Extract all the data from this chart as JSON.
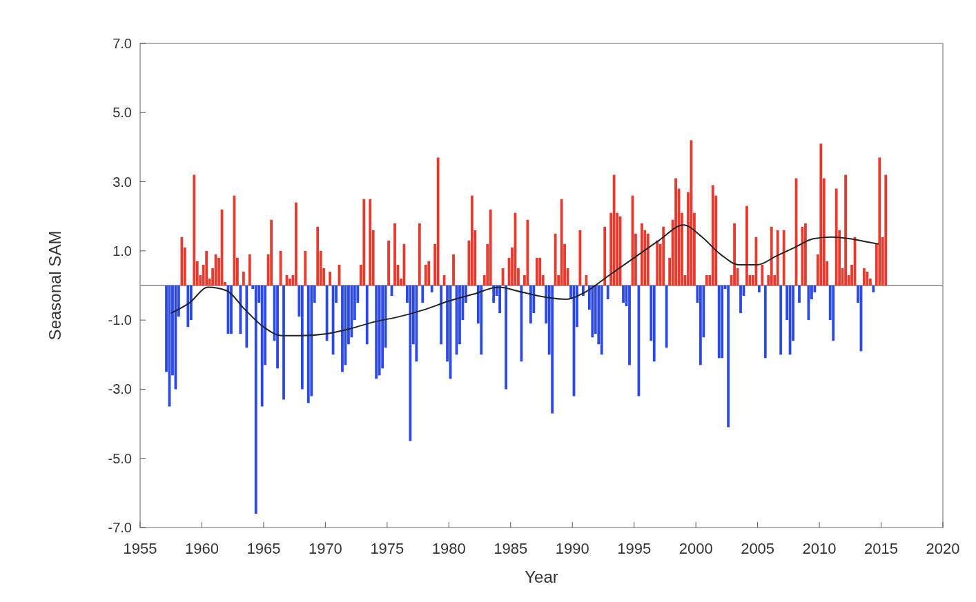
{
  "chart_data": {
    "type": "bar",
    "xlabel": "Year",
    "ylabel": "Seasonal SAM",
    "xlim": [
      1955,
      2020
    ],
    "xticks": [
      1955,
      1960,
      1965,
      1970,
      1975,
      1980,
      1985,
      1990,
      1995,
      2000,
      2005,
      2010,
      2015,
      2020
    ],
    "ylim": [
      -7,
      7
    ],
    "yticks": [
      {
        "value": -7,
        "label": "-7.0"
      },
      {
        "value": -5,
        "label": "-5.0"
      },
      {
        "value": -3,
        "label": "-3.0"
      },
      {
        "value": -1,
        "label": "-1.0"
      },
      {
        "value": 1,
        "label": "1.0"
      },
      {
        "value": 3,
        "label": "3.0"
      },
      {
        "value": 5,
        "label": "5.0"
      },
      {
        "value": 7,
        "label": "7.0"
      }
    ],
    "grid": false,
    "ref_lines": [
      {
        "axis": "y",
        "value": 0,
        "color": "#808080"
      }
    ],
    "series": [
      {
        "color": "#e8392c",
        "x": [
          1958.375,
          1958.625,
          1959.375,
          1959.625,
          1959.875,
          1960.125,
          1960.375,
          1960.625,
          1960.875,
          1961.125,
          1961.375,
          1961.625,
          1961.875,
          1962.625,
          1962.875,
          1963.375,
          1963.875,
          1965.375,
          1965.625,
          1966.375,
          1966.875,
          1967.125,
          1967.375,
          1967.625,
          1968.375,
          1969.375,
          1969.625,
          1969.875,
          1970.375,
          1971.125,
          1972.875,
          1973.125,
          1973.625,
          1973.875,
          1975.125,
          1975.625,
          1975.875,
          1976.125,
          1976.375,
          1977.625,
          1978.125,
          1978.375,
          1978.875,
          1979.125,
          1979.625,
          1980.375,
          1981.625,
          1981.875,
          1982.125,
          1982.875,
          1983.125,
          1983.375,
          1984.375,
          1984.875,
          1985.125,
          1985.375,
          1985.625,
          1986.125,
          1986.375,
          1987.125,
          1987.375,
          1987.625,
          1988.625,
          1988.875,
          1989.125,
          1989.375,
          1989.625,
          1990.625,
          1991.125,
          1992.625,
          1993.125,
          1993.375,
          1993.625,
          1993.875,
          1994.875,
          1995.125,
          1995.625,
          1995.875,
          1996.125,
          1996.875,
          1997.125,
          1997.375,
          1997.875,
          1998.125,
          1998.375,
          1998.625,
          1998.875,
          1999.125,
          1999.375,
          1999.625,
          1999.875,
          2000.875,
          2001.125,
          2001.375,
          2001.625,
          2002.875,
          2003.125,
          2003.375,
          2004.125,
          2004.375,
          2004.625,
          2004.875,
          2005.375,
          2005.875,
          2006.125,
          2006.375,
          2006.625,
          2007.125,
          2008.125,
          2008.625,
          2008.875,
          2009.875,
          2010.125,
          2010.375,
          2010.625,
          2011.375,
          2011.625,
          2011.875,
          2012.125,
          2012.375,
          2012.625,
          2012.875,
          2013.625,
          2013.875,
          2014.125,
          2014.625,
          2014.875,
          2015.125,
          2015.375
        ],
        "values": [
          1.4,
          1.1,
          3.2,
          0.7,
          0.3,
          0.6,
          1.0,
          0.2,
          0.5,
          0.9,
          0.8,
          2.2,
          0.1,
          2.6,
          0.8,
          0.4,
          0.9,
          0.9,
          1.9,
          1.0,
          0.3,
          0.2,
          0.3,
          2.4,
          1.0,
          1.7,
          1.0,
          0.5,
          0.4,
          0.6,
          0.6,
          2.5,
          2.5,
          1.6,
          1.3,
          1.8,
          0.6,
          0.2,
          1.2,
          1.8,
          0.6,
          0.7,
          1.2,
          3.7,
          0.3,
          0.9,
          1.3,
          2.6,
          1.6,
          0.3,
          1.2,
          2.2,
          0.5,
          0.8,
          1.1,
          2.1,
          0.5,
          0.3,
          1.9,
          0.8,
          0.8,
          0.3,
          1.5,
          0.3,
          2.5,
          1.2,
          0.5,
          1.6,
          0.3,
          1.7,
          2.1,
          3.2,
          2.1,
          2.0,
          2.6,
          1.5,
          1.8,
          1.6,
          1.5,
          1.3,
          1.2,
          1.7,
          0.8,
          1.9,
          3.1,
          2.8,
          2.1,
          0.3,
          2.7,
          4.2,
          2.1,
          0.3,
          0.3,
          2.9,
          2.6,
          0.3,
          1.8,
          0.5,
          2.3,
          0.3,
          0.3,
          1.4,
          0.6,
          0.3,
          1.7,
          0.3,
          1.6,
          1.6,
          3.1,
          1.7,
          1.8,
          0.9,
          4.1,
          3.1,
          0.7,
          2.8,
          1.6,
          0.5,
          3.2,
          0.3,
          0.6,
          1.4,
          0.5,
          0.4,
          0.2,
          1.2,
          3.7,
          1.4,
          3.2
        ]
      },
      {
        "color": "#2b48e8",
        "x": [
          1957.125,
          1957.375,
          1957.625,
          1957.875,
          1958.125,
          1958.875,
          1959.125,
          1962.125,
          1962.375,
          1963.125,
          1963.625,
          1964.125,
          1964.375,
          1964.625,
          1964.875,
          1965.125,
          1965.875,
          1966.125,
          1966.625,
          1967.875,
          1968.125,
          1968.625,
          1968.875,
          1969.125,
          1970.125,
          1970.625,
          1970.875,
          1971.375,
          1971.625,
          1971.875,
          1972.125,
          1972.375,
          1972.625,
          1973.375,
          1974.125,
          1974.375,
          1974.625,
          1974.875,
          1975.375,
          1976.625,
          1976.875,
          1977.125,
          1977.375,
          1977.875,
          1978.625,
          1979.375,
          1979.875,
          1980.125,
          1980.625,
          1980.875,
          1981.125,
          1981.375,
          1982.375,
          1982.625,
          1983.625,
          1983.875,
          1984.125,
          1984.625,
          1985.875,
          1986.625,
          1986.875,
          1987.875,
          1988.125,
          1988.375,
          1989.875,
          1990.125,
          1990.375,
          1990.875,
          1991.375,
          1991.625,
          1991.875,
          1992.125,
          1992.375,
          1992.875,
          1994.125,
          1994.375,
          1994.625,
          1995.375,
          1996.375,
          1996.625,
          1997.625,
          2000.125,
          2000.375,
          2000.625,
          2001.875,
          2002.125,
          2002.375,
          2002.625,
          2003.625,
          2003.875,
          2005.125,
          2005.625,
          2006.875,
          2007.375,
          2007.625,
          2007.875,
          2008.375,
          2009.125,
          2009.375,
          2009.625,
          2010.875,
          2011.125,
          2013.125,
          2013.375,
          2014.375
        ],
        "values": [
          -2.5,
          -3.5,
          -2.6,
          -3.0,
          -0.9,
          -1.2,
          -1.0,
          -1.4,
          -1.4,
          -1.4,
          -1.8,
          -0.1,
          -6.6,
          -0.5,
          -3.5,
          -2.3,
          -1.6,
          -2.4,
          -3.3,
          -0.9,
          -3.0,
          -3.4,
          -3.2,
          -0.5,
          -1.6,
          -2.0,
          -0.5,
          -2.5,
          -2.3,
          -1.7,
          -1.5,
          -1.0,
          -0.5,
          -1.7,
          -2.7,
          -2.6,
          -2.4,
          -1.8,
          -0.3,
          -0.5,
          -4.5,
          -1.7,
          -2.2,
          -0.5,
          -0.2,
          -1.7,
          -2.2,
          -2.7,
          -2.0,
          -1.7,
          -1.0,
          -0.5,
          -1.1,
          -2.0,
          -0.5,
          -0.3,
          -0.8,
          -3.0,
          -2.2,
          -1.1,
          -0.8,
          -1.1,
          -2.0,
          -3.7,
          -0.4,
          -3.2,
          -1.2,
          -0.3,
          -0.7,
          -1.5,
          -1.4,
          -1.7,
          -2.0,
          -0.4,
          -0.5,
          -0.6,
          -2.3,
          -3.2,
          -1.6,
          -2.2,
          -1.8,
          -0.5,
          -2.3,
          -1.5,
          -2.1,
          -2.1,
          -0.1,
          -4.1,
          -0.8,
          -0.3,
          -0.2,
          -2.1,
          -2.0,
          -1.0,
          -2.0,
          -1.6,
          -0.5,
          -1.0,
          -0.4,
          -0.2,
          -1.0,
          -1.6,
          -0.5,
          -1.9,
          -0.2
        ]
      },
      {
        "type": "line",
        "color": "#222222",
        "x": [
          1957.5,
          1959,
          1960.5,
          1962,
          1963.5,
          1965,
          1966.5,
          1968,
          1970,
          1972,
          1974,
          1976,
          1978,
          1980,
          1982,
          1984,
          1986,
          1988,
          1989.5,
          1991,
          1993,
          1995,
          1997,
          1999,
          2000.5,
          2002,
          2003.5,
          2005,
          2006.5,
          2008,
          2009.5,
          2011,
          2012.5,
          2014,
          2014.8
        ],
        "values": [
          -0.8,
          -0.5,
          -0.05,
          -0.15,
          -0.7,
          -1.2,
          -1.45,
          -1.45,
          -1.4,
          -1.25,
          -1.05,
          -0.9,
          -0.7,
          -0.45,
          -0.25,
          -0.05,
          -0.2,
          -0.35,
          -0.4,
          -0.2,
          0.3,
          0.8,
          1.3,
          1.75,
          1.4,
          0.9,
          0.6,
          0.6,
          0.85,
          1.1,
          1.35,
          1.4,
          1.35,
          1.25,
          1.2
        ]
      }
    ]
  }
}
